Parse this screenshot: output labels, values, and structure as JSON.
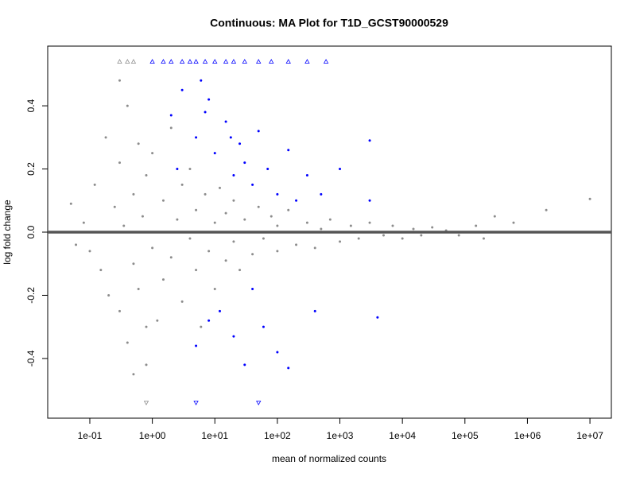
{
  "chart_data": {
    "type": "scatter",
    "title": "Continuous: MA Plot for T1D_GCST90000529",
    "xlabel": "mean of normalized counts",
    "ylabel": "log fold change",
    "xscale": "log",
    "xlim": [
      0.0212,
      22000000
    ],
    "ylim": [
      -0.589,
      0.589
    ],
    "xticks": [
      {
        "value": 0.1,
        "label": "1e-01"
      },
      {
        "value": 1,
        "label": "1e+00"
      },
      {
        "value": 10,
        "label": "1e+01"
      },
      {
        "value": 100,
        "label": "1e+02"
      },
      {
        "value": 1000,
        "label": "1e+03"
      },
      {
        "value": 10000,
        "label": "1e+04"
      },
      {
        "value": 100000,
        "label": "1e+05"
      },
      {
        "value": 1000000,
        "label": "1e+06"
      },
      {
        "value": 10000000,
        "label": "1e+07"
      }
    ],
    "yticks": [
      -0.4,
      -0.2,
      {
        "value": 0,
        "label": "0.0"
      },
      0.2,
      0.4
    ],
    "hline": {
      "value": 0,
      "color": "#555555"
    },
    "series": [
      {
        "color": "#8c8c8c",
        "marker": "dot",
        "x": [
          0.05,
          0.06,
          0.08,
          0.1,
          0.12,
          0.15,
          0.18,
          0.2,
          0.25,
          0.3,
          0.3,
          0.35,
          0.4,
          0.4,
          0.5,
          0.5,
          0.6,
          0.6,
          0.7,
          0.8,
          0.8,
          1,
          1,
          1.2,
          1.5,
          1.5,
          2,
          2,
          2.5,
          3,
          3,
          4,
          4,
          5,
          5,
          6,
          7,
          8,
          10,
          10,
          12,
          15,
          15,
          20,
          20,
          25,
          30,
          40,
          50,
          60,
          80,
          100,
          100,
          150,
          200,
          300,
          400,
          500,
          700,
          1000,
          1500,
          2000,
          3000,
          5000,
          7000,
          10000,
          15000,
          20000,
          30000,
          50000,
          80000,
          150000,
          300000,
          600000,
          2000000,
          10000000,
          0.3,
          0.8,
          0.5,
          200000
        ],
        "values": [
          0.09,
          -0.04,
          0.03,
          -0.06,
          0.15,
          -0.12,
          0.3,
          -0.2,
          0.08,
          -0.25,
          0.22,
          0.02,
          -0.35,
          0.4,
          0.12,
          -0.1,
          0.28,
          -0.18,
          0.05,
          -0.42,
          0.18,
          -0.05,
          0.25,
          -0.28,
          0.1,
          -0.15,
          0.33,
          -0.08,
          0.04,
          -0.22,
          0.15,
          -0.02,
          0.2,
          -0.12,
          0.07,
          -0.3,
          0.12,
          -0.06,
          0.03,
          -0.18,
          0.14,
          -0.09,
          0.06,
          -0.03,
          0.1,
          -0.12,
          0.04,
          -0.07,
          0.08,
          -0.02,
          0.05,
          -0.06,
          0.02,
          0.07,
          -0.04,
          0.03,
          -0.05,
          0.01,
          0.04,
          -0.03,
          0.02,
          -0.02,
          0.03,
          -0.01,
          0.02,
          -0.02,
          0.01,
          -0.01,
          0.015,
          0.005,
          -0.01,
          0.02,
          0.05,
          0.03,
          0.07,
          0.105,
          0.48,
          -0.3,
          -0.45,
          -0.02
        ]
      },
      {
        "color": "#0000ff",
        "marker": "dot",
        "x": [
          5,
          8,
          10,
          15,
          20,
          25,
          30,
          40,
          50,
          70,
          100,
          150,
          200,
          300,
          500,
          1000,
          3000,
          3000,
          6,
          3,
          2,
          12,
          20,
          40,
          60,
          5,
          8,
          30,
          100,
          150,
          400,
          4000,
          7,
          18,
          2.5
        ],
        "values": [
          0.3,
          0.42,
          0.25,
          0.35,
          0.18,
          0.28,
          0.22,
          0.15,
          0.32,
          0.2,
          0.12,
          0.26,
          0.1,
          0.18,
          0.12,
          0.2,
          0.1,
          0.29,
          0.48,
          0.45,
          0.37,
          -0.25,
          -0.33,
          -0.18,
          -0.3,
          -0.36,
          -0.28,
          -0.42,
          -0.38,
          -0.43,
          -0.25,
          -0.27,
          0.38,
          0.3,
          0.2
        ]
      },
      {
        "color": "#0000ff",
        "marker": "triangle-up",
        "x": [
          1,
          1.5,
          2,
          3,
          4,
          5,
          7,
          10,
          15,
          20,
          30,
          50,
          80,
          150,
          300,
          600
        ],
        "values": [
          0.54,
          0.54,
          0.54,
          0.54,
          0.54,
          0.54,
          0.54,
          0.54,
          0.54,
          0.54,
          0.54,
          0.54,
          0.54,
          0.54,
          0.54,
          0.54
        ]
      },
      {
        "color": "#8c8c8c",
        "marker": "triangle-up",
        "x": [
          0.3,
          0.4,
          0.5
        ],
        "values": [
          0.54,
          0.54,
          0.54
        ]
      },
      {
        "color": "#8c8c8c",
        "marker": "triangle-down",
        "x": [
          0.8
        ],
        "values": [
          -0.54
        ]
      },
      {
        "color": "#0000ff",
        "marker": "triangle-down",
        "x": [
          5,
          50
        ],
        "values": [
          -0.54,
          -0.54
        ]
      }
    ]
  }
}
